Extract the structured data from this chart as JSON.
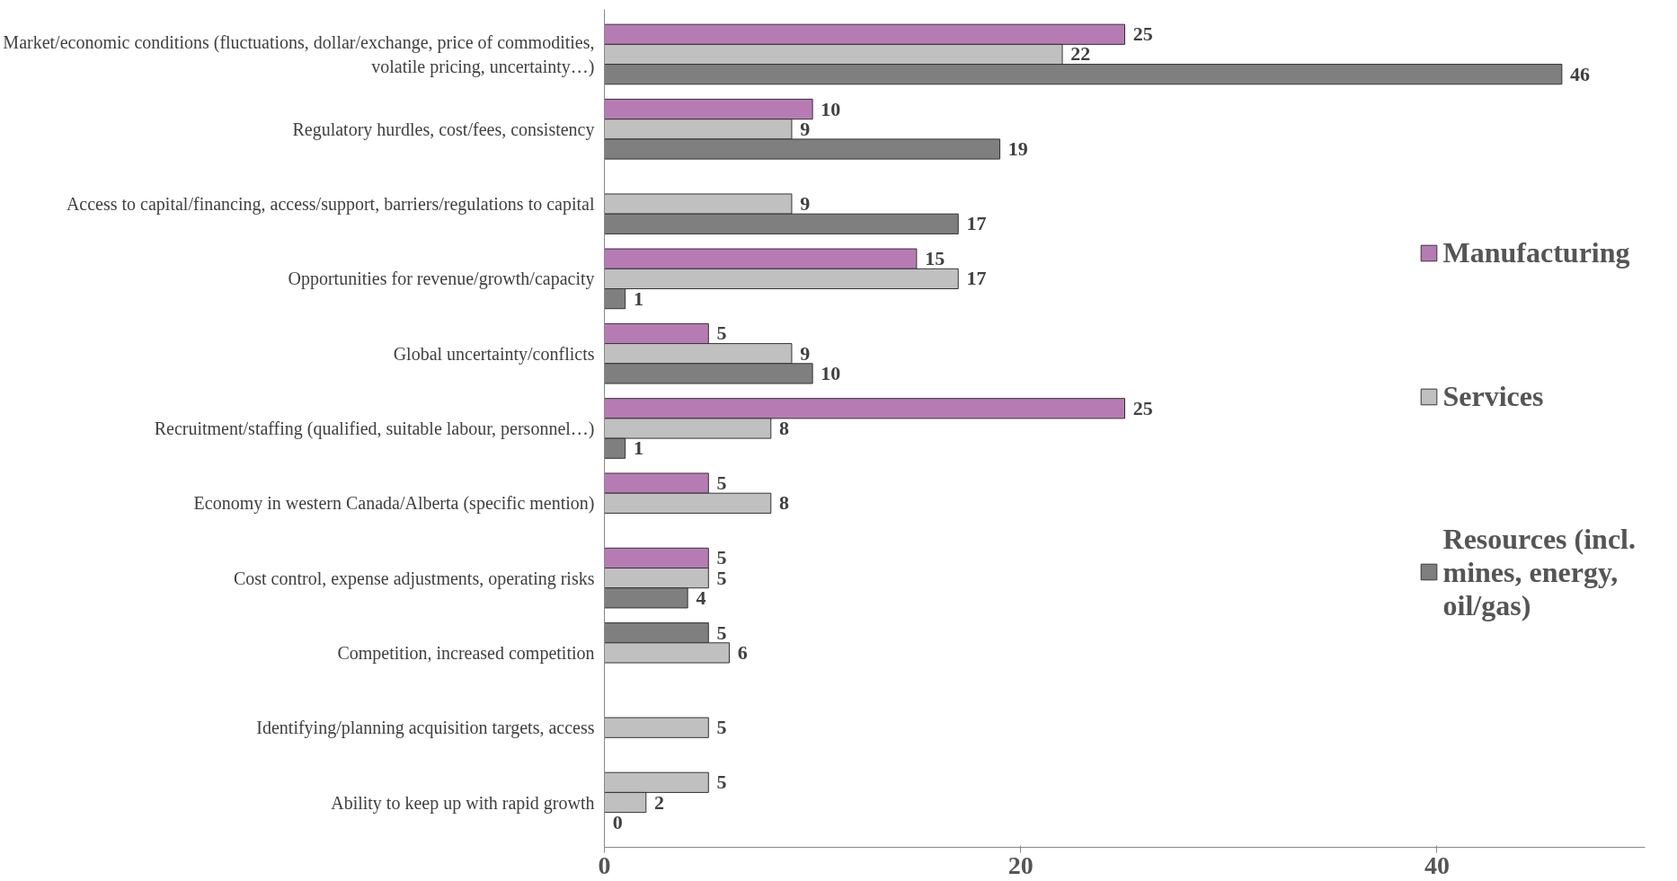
{
  "chart_data": {
    "type": "bar",
    "orientation": "horizontal",
    "categories": [
      "Market/economic conditions (fluctuations, dollar/exchange, price of commodities, volatile pricing, uncertainty…)",
      "Regulatory hurdles, cost/fees, consistency",
      "Access to capital/financing, access/support, barriers/regulations to capital",
      "Opportunities for revenue/growth/capacity",
      "Global uncertainty/conflicts",
      "Recruitment/staffing (qualified, suitable labour, personnel…)",
      "Economy in western Canada/Alberta (specific mention)",
      "Cost control, expense adjustments, operating risks",
      "Competition, increased competition",
      "Identifying/planning acquisition targets, access",
      "Ability to keep up with rapid growth"
    ],
    "series": [
      {
        "name": "Manufacturing",
        "color": "#b77bb4",
        "values": [
          25,
          10,
          null,
          15,
          5,
          25,
          5,
          5,
          5,
          null,
          5
        ],
        "colors": [
          "#b77bb4",
          "#b77bb4",
          "#b77bb4",
          "#b77bb4",
          "#b77bb4",
          "#b77bb4",
          "#b77bb4",
          "#b77bb4",
          "#7f7f7f",
          "#b77bb4",
          "#c0c0c0"
        ]
      },
      {
        "name": "Services",
        "color": "#c0c0c0",
        "values": [
          22,
          9,
          9,
          17,
          9,
          8,
          8,
          5,
          6,
          5,
          2
        ]
      },
      {
        "name": "Resources (incl. mines, energy, oil/gas)",
        "color": "#7f7f7f",
        "values": [
          46,
          19,
          17,
          1,
          10,
          1,
          null,
          4,
          null,
          null,
          0
        ]
      }
    ],
    "xlim": [
      0,
      50
    ],
    "xticks": [
      0,
      20,
      40
    ],
    "data_labels": true,
    "grid": false,
    "legend": "right"
  }
}
